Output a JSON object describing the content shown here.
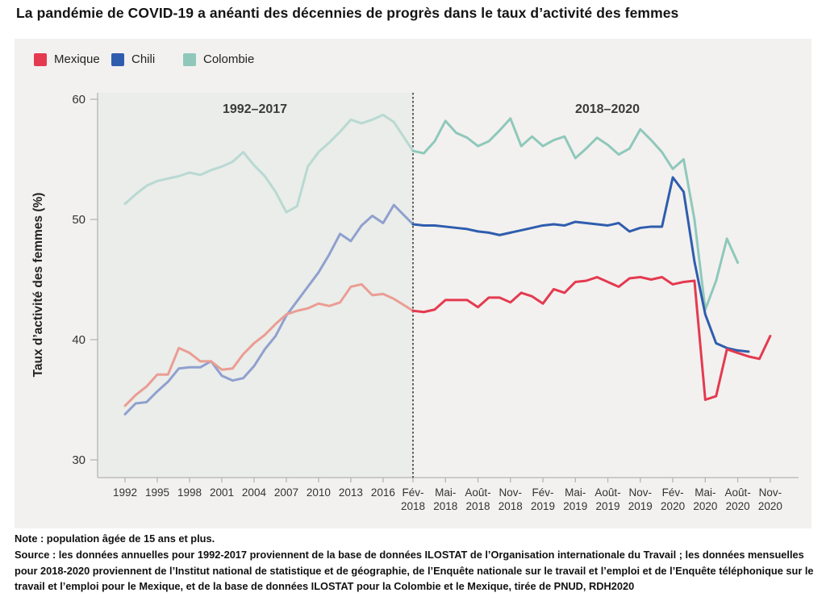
{
  "page": {
    "title": "La pandémie de COVID-19 a anéanti des décennies de progrès dans le taux d’activité des femmes",
    "note": "Note : population âgée de 15 ans et plus.",
    "source": "Source : les données annuelles pour 1992-2017 proviennent de la base de données ILOSTAT de l’Organisation internationale du Travail ; les données mensuelles pour 2018-2020 proviennent de l’Institut national de statistique et de géographie, de l’Enquête nationale sur le travail et l’emploi et de l’Enquête téléphonique sur le travail et l’emploi pour le Mexique, et de la base de données ILOSTAT pour la Colombie et le Mexique, tirée de PNUD, RDH2020"
  },
  "chart_data": {
    "type": "line",
    "title": "La pandémie de COVID-19 a anéanti des décennies de progrès dans le taux d’activité des femmes",
    "xlabel": "",
    "ylabel": "Taux d’activité des femmes (%)",
    "ylim": [
      30,
      60
    ],
    "yticks": [
      60,
      50,
      40,
      30
    ],
    "grid": false,
    "legend_position": "top-left",
    "period_labels": [
      "1992–2017",
      "2018–2020"
    ],
    "divider": "ligne pointillée entre 2017 et Fév-2018",
    "x_annual_tick_labels": [
      "1992",
      "1995",
      "1998",
      "2001",
      "2004",
      "2007",
      "2010",
      "2013",
      "2016"
    ],
    "x_monthly_tick_labels": [
      "Fév-2018",
      "Mai-2018",
      "Août-2018",
      "Nov-2018",
      "Fév-2019",
      "Mai-2019",
      "Août-2019",
      "Nov-2019",
      "Fév-2020",
      "Mai-2020",
      "Août-2020",
      "Nov-2020"
    ],
    "annual_start_year": 1992,
    "annual_end_year": 2017,
    "monthly_start": "Fév-2018",
    "series": [
      {
        "name": "Mexique",
        "color": "#e43a50",
        "muted_color": "#eb9d94",
        "monthly_end": "Nov-2020",
        "annual": [
          34.5,
          35.4,
          36.1,
          37.1,
          37.1,
          39.3,
          38.9,
          38.2,
          38.2,
          37.5,
          37.6,
          38.8,
          39.7,
          40.4,
          41.3,
          42.1,
          42.4,
          42.6,
          43.0,
          42.8,
          43.1,
          44.4,
          44.6,
          43.7,
          43.8,
          43.4
        ],
        "monthly": [
          42.4,
          42.3,
          42.5,
          43.3,
          43.3,
          43.3,
          42.7,
          43.5,
          43.5,
          43.1,
          43.9,
          43.6,
          43.0,
          44.2,
          43.9,
          44.8,
          44.9,
          45.2,
          44.8,
          44.4,
          45.1,
          45.2,
          45.0,
          45.2,
          44.6,
          44.8,
          44.9,
          35.0,
          35.3,
          39.2,
          38.9,
          38.6,
          38.4,
          40.3
        ]
      },
      {
        "name": "Chili",
        "color": "#2f5dae",
        "muted_color": "#90a0cf",
        "monthly_end": "Sep-2020",
        "annual": [
          33.8,
          34.7,
          34.8,
          35.7,
          36.5,
          37.6,
          37.7,
          37.7,
          38.2,
          37.0,
          36.6,
          36.8,
          37.8,
          39.2,
          40.3,
          42.0,
          43.2,
          44.4,
          45.6,
          47.1,
          48.8,
          48.2,
          49.5,
          50.3,
          49.7,
          51.2
        ],
        "monthly": [
          49.6,
          49.5,
          49.5,
          49.4,
          49.3,
          49.2,
          49.0,
          48.9,
          48.7,
          48.9,
          49.1,
          49.3,
          49.5,
          49.6,
          49.5,
          49.8,
          49.7,
          49.6,
          49.5,
          49.7,
          49.0,
          49.3,
          49.4,
          49.4,
          53.5,
          52.3,
          46.5,
          42.1,
          39.7,
          39.3,
          39.1,
          39.0
        ]
      },
      {
        "name": "Colombie",
        "color": "#8fc8bb",
        "muted_color": "#b9d9d3",
        "monthly_end": "Août-2020",
        "annual": [
          51.3,
          52.1,
          52.8,
          53.2,
          53.4,
          53.6,
          53.9,
          53.7,
          54.1,
          54.4,
          54.8,
          55.6,
          54.5,
          53.6,
          52.3,
          50.6,
          51.1,
          54.4,
          55.6,
          56.4,
          57.3,
          58.3,
          58.0,
          58.3,
          58.7,
          58.1
        ],
        "monthly": [
          55.7,
          55.5,
          56.5,
          58.2,
          57.2,
          56.8,
          56.1,
          56.5,
          57.4,
          58.4,
          56.1,
          56.9,
          56.1,
          56.6,
          56.9,
          55.1,
          55.9,
          56.8,
          56.2,
          55.4,
          55.9,
          57.5,
          56.6,
          55.6,
          54.2,
          55.0,
          50.0,
          42.5,
          44.9,
          48.4,
          46.4
        ]
      }
    ],
    "colors": {
      "panel_background": "#f2f1ef",
      "shaded_region_1992_2017": "#eaede9",
      "axis": "#b5b5b5",
      "tick_text": "#333333",
      "divider_line": "#222222"
    }
  }
}
